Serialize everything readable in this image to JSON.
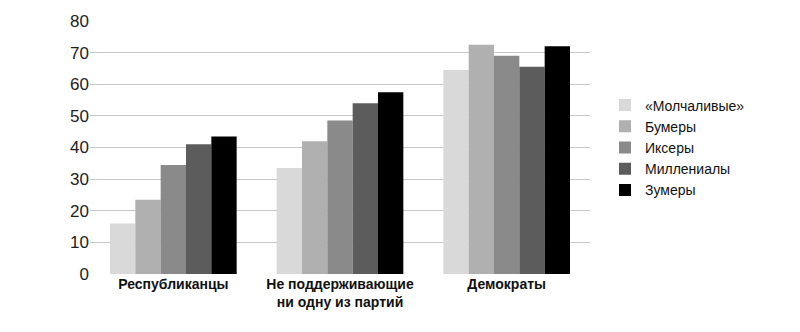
{
  "chart_data": {
    "type": "bar",
    "categories": [
      "Республиканцы",
      "Не поддерживающие ни одну из партий",
      "Демократы"
    ],
    "series": [
      {
        "name": "«Молчаливые»",
        "color": "#d9d9d9",
        "values": [
          16,
          33.5,
          64.5
        ]
      },
      {
        "name": "Бумеры",
        "color": "#b0b0b0",
        "values": [
          23.5,
          42,
          72.5
        ]
      },
      {
        "name": "Иксеры",
        "color": "#8a8a8a",
        "values": [
          34.5,
          48.5,
          69
        ]
      },
      {
        "name": "Миллениалы",
        "color": "#5c5c5c",
        "values": [
          41,
          54,
          65.5
        ]
      },
      {
        "name": "Зумеры",
        "color": "#000000",
        "values": [
          43.5,
          57.5,
          72
        ]
      }
    ],
    "ylim": [
      0,
      80
    ],
    "yticks": [
      0,
      10,
      20,
      30,
      40,
      50,
      60,
      70,
      80
    ],
    "grid": true,
    "legend": "right"
  }
}
